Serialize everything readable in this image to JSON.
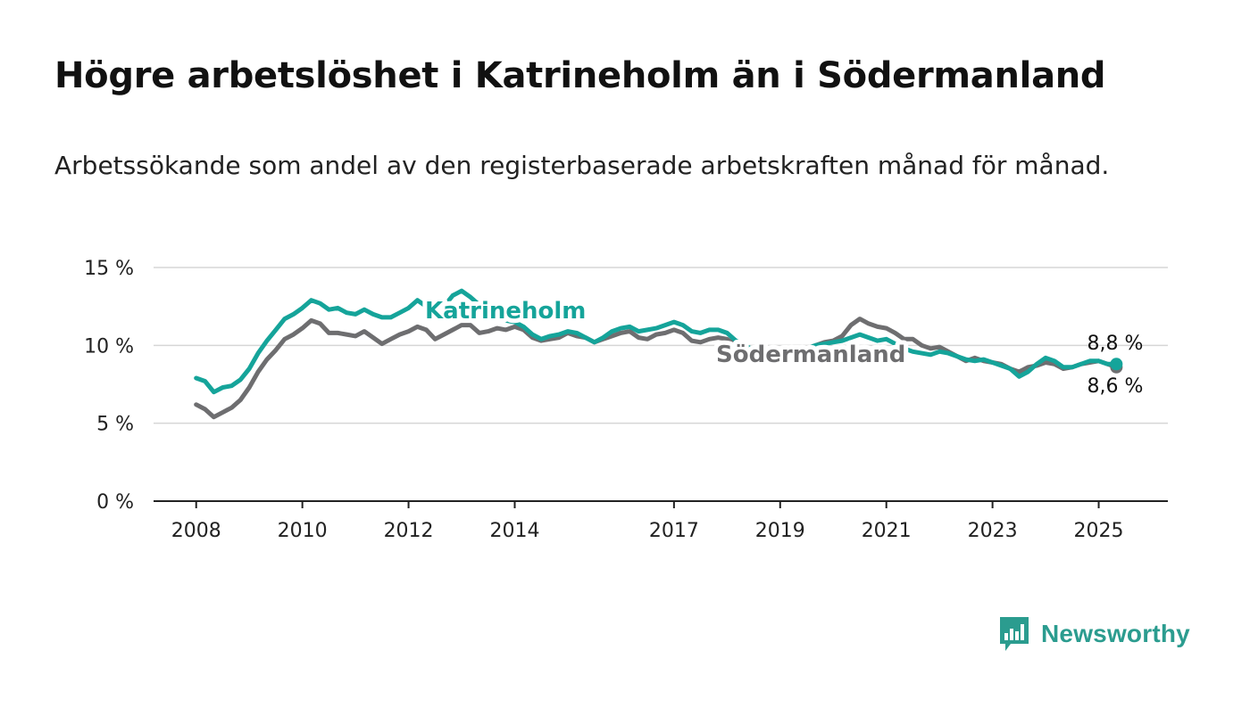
{
  "title": "Högre arbetslöshet i Katrineholm än i Södermanland",
  "subtitle": "Arbetssökande som andel av den registerbaserade arbetskraften månad för månad.",
  "brand": {
    "name": "Newsworthy",
    "icon": "bar-chart-speech-bubble-icon"
  },
  "chart_data": {
    "type": "line",
    "ylim": [
      0,
      15
    ],
    "yticks": [
      0,
      5,
      10,
      15
    ],
    "ytick_labels": [
      "0 %",
      "5 %",
      "10 %",
      "15 %"
    ],
    "xlim": [
      "2007-07",
      "2026-01"
    ],
    "xticks": [
      "2008",
      "2010",
      "2012",
      "2014",
      "2017",
      "2019",
      "2021",
      "2023",
      "2025"
    ],
    "grid": true,
    "series": [
      {
        "name": "Katrineholm",
        "color": "#15a49a",
        "end_label": "8,8 %",
        "points": [
          [
            "2008-01",
            7.9
          ],
          [
            "2008-03",
            7.7
          ],
          [
            "2008-05",
            7.0
          ],
          [
            "2008-07",
            7.3
          ],
          [
            "2008-09",
            7.4
          ],
          [
            "2008-11",
            7.8
          ],
          [
            "2009-01",
            8.5
          ],
          [
            "2009-03",
            9.5
          ],
          [
            "2009-05",
            10.3
          ],
          [
            "2009-07",
            11.0
          ],
          [
            "2009-09",
            11.7
          ],
          [
            "2009-11",
            12.0
          ],
          [
            "2010-01",
            12.4
          ],
          [
            "2010-03",
            12.9
          ],
          [
            "2010-05",
            12.7
          ],
          [
            "2010-07",
            12.3
          ],
          [
            "2010-09",
            12.4
          ],
          [
            "2010-11",
            12.1
          ],
          [
            "2011-01",
            12.0
          ],
          [
            "2011-03",
            12.3
          ],
          [
            "2011-05",
            12.0
          ],
          [
            "2011-07",
            11.8
          ],
          [
            "2011-09",
            11.8
          ],
          [
            "2011-11",
            12.1
          ],
          [
            "2012-01",
            12.4
          ],
          [
            "2012-03",
            12.9
          ],
          [
            "2012-05",
            12.5
          ],
          [
            "2012-07",
            12.0
          ],
          [
            "2012-09",
            12.5
          ],
          [
            "2012-11",
            13.2
          ],
          [
            "2013-01",
            13.5
          ],
          [
            "2013-03",
            13.1
          ],
          [
            "2013-05",
            12.6
          ],
          [
            "2013-07",
            12.0
          ],
          [
            "2013-09",
            11.8
          ],
          [
            "2013-11",
            11.6
          ],
          [
            "2014-01",
            11.5
          ],
          [
            "2014-03",
            11.2
          ],
          [
            "2014-05",
            10.7
          ],
          [
            "2014-07",
            10.4
          ],
          [
            "2014-09",
            10.6
          ],
          [
            "2014-11",
            10.7
          ],
          [
            "2015-01",
            10.9
          ],
          [
            "2015-03",
            10.8
          ],
          [
            "2015-05",
            10.5
          ],
          [
            "2015-07",
            10.2
          ],
          [
            "2015-09",
            10.5
          ],
          [
            "2015-11",
            10.9
          ],
          [
            "2016-01",
            11.1
          ],
          [
            "2016-03",
            11.2
          ],
          [
            "2016-05",
            10.9
          ],
          [
            "2016-07",
            11.0
          ],
          [
            "2016-09",
            11.1
          ],
          [
            "2016-11",
            11.3
          ],
          [
            "2017-01",
            11.5
          ],
          [
            "2017-03",
            11.3
          ],
          [
            "2017-05",
            10.9
          ],
          [
            "2017-07",
            10.8
          ],
          [
            "2017-09",
            11.0
          ],
          [
            "2017-11",
            11.0
          ],
          [
            "2018-01",
            10.8
          ],
          [
            "2018-03",
            10.3
          ],
          [
            "2018-05",
            10.0
          ],
          [
            "2018-07",
            9.7
          ],
          [
            "2018-09",
            9.5
          ],
          [
            "2018-11",
            9.4
          ],
          [
            "2019-01",
            9.5
          ],
          [
            "2019-03",
            9.6
          ],
          [
            "2019-05",
            9.7
          ],
          [
            "2019-07",
            9.8
          ],
          [
            "2019-09",
            10.0
          ],
          [
            "2019-11",
            10.1
          ],
          [
            "2020-01",
            10.2
          ],
          [
            "2020-03",
            10.3
          ],
          [
            "2020-05",
            10.5
          ],
          [
            "2020-07",
            10.7
          ],
          [
            "2020-09",
            10.5
          ],
          [
            "2020-11",
            10.3
          ],
          [
            "2021-01",
            10.4
          ],
          [
            "2021-03",
            10.1
          ],
          [
            "2021-05",
            9.8
          ],
          [
            "2021-07",
            9.6
          ],
          [
            "2021-09",
            9.5
          ],
          [
            "2021-11",
            9.4
          ],
          [
            "2022-01",
            9.6
          ],
          [
            "2022-03",
            9.5
          ],
          [
            "2022-05",
            9.3
          ],
          [
            "2022-07",
            9.1
          ],
          [
            "2022-09",
            9.0
          ],
          [
            "2022-11",
            9.1
          ],
          [
            "2023-01",
            8.9
          ],
          [
            "2023-03",
            8.7
          ],
          [
            "2023-05",
            8.5
          ],
          [
            "2023-07",
            8.0
          ],
          [
            "2023-09",
            8.3
          ],
          [
            "2023-11",
            8.8
          ],
          [
            "2024-01",
            9.2
          ],
          [
            "2024-03",
            9.0
          ],
          [
            "2024-05",
            8.6
          ],
          [
            "2024-07",
            8.6
          ],
          [
            "2024-09",
            8.8
          ],
          [
            "2024-11",
            9.0
          ],
          [
            "2025-01",
            9.0
          ],
          [
            "2025-03",
            8.8
          ],
          [
            "2025-05",
            8.8
          ]
        ]
      },
      {
        "name": "Södermanland",
        "color": "#6e6e70",
        "end_label": "8,6 %",
        "points": [
          [
            "2008-01",
            6.2
          ],
          [
            "2008-03",
            5.9
          ],
          [
            "2008-05",
            5.4
          ],
          [
            "2008-07",
            5.7
          ],
          [
            "2008-09",
            6.0
          ],
          [
            "2008-11",
            6.5
          ],
          [
            "2009-01",
            7.3
          ],
          [
            "2009-03",
            8.3
          ],
          [
            "2009-05",
            9.1
          ],
          [
            "2009-07",
            9.7
          ],
          [
            "2009-09",
            10.4
          ],
          [
            "2009-11",
            10.7
          ],
          [
            "2010-01",
            11.1
          ],
          [
            "2010-03",
            11.6
          ],
          [
            "2010-05",
            11.4
          ],
          [
            "2010-07",
            10.8
          ],
          [
            "2010-09",
            10.8
          ],
          [
            "2010-11",
            10.7
          ],
          [
            "2011-01",
            10.6
          ],
          [
            "2011-03",
            10.9
          ],
          [
            "2011-05",
            10.5
          ],
          [
            "2011-07",
            10.1
          ],
          [
            "2011-09",
            10.4
          ],
          [
            "2011-11",
            10.7
          ],
          [
            "2012-01",
            10.9
          ],
          [
            "2012-03",
            11.2
          ],
          [
            "2012-05",
            11.0
          ],
          [
            "2012-07",
            10.4
          ],
          [
            "2012-09",
            10.7
          ],
          [
            "2012-11",
            11.0
          ],
          [
            "2013-01",
            11.3
          ],
          [
            "2013-03",
            11.3
          ],
          [
            "2013-05",
            10.8
          ],
          [
            "2013-07",
            10.9
          ],
          [
            "2013-09",
            11.1
          ],
          [
            "2013-11",
            11.0
          ],
          [
            "2014-01",
            11.2
          ],
          [
            "2014-03",
            11.0
          ],
          [
            "2014-05",
            10.5
          ],
          [
            "2014-07",
            10.3
          ],
          [
            "2014-09",
            10.4
          ],
          [
            "2014-11",
            10.5
          ],
          [
            "2015-01",
            10.8
          ],
          [
            "2015-03",
            10.6
          ],
          [
            "2015-05",
            10.5
          ],
          [
            "2015-07",
            10.2
          ],
          [
            "2015-09",
            10.4
          ],
          [
            "2015-11",
            10.6
          ],
          [
            "2016-01",
            10.8
          ],
          [
            "2016-03",
            10.9
          ],
          [
            "2016-05",
            10.5
          ],
          [
            "2016-07",
            10.4
          ],
          [
            "2016-09",
            10.7
          ],
          [
            "2016-11",
            10.8
          ],
          [
            "2017-01",
            11.0
          ],
          [
            "2017-03",
            10.8
          ],
          [
            "2017-05",
            10.3
          ],
          [
            "2017-07",
            10.2
          ],
          [
            "2017-09",
            10.4
          ],
          [
            "2017-11",
            10.5
          ],
          [
            "2018-01",
            10.4
          ],
          [
            "2018-03",
            10.0
          ],
          [
            "2018-05",
            9.8
          ],
          [
            "2018-07",
            9.6
          ],
          [
            "2018-09",
            9.5
          ],
          [
            "2018-11",
            9.4
          ],
          [
            "2019-01",
            9.5
          ],
          [
            "2019-03",
            9.6
          ],
          [
            "2019-05",
            9.7
          ],
          [
            "2019-07",
            9.8
          ],
          [
            "2019-09",
            10.0
          ],
          [
            "2019-11",
            10.2
          ],
          [
            "2020-01",
            10.3
          ],
          [
            "2020-03",
            10.6
          ],
          [
            "2020-05",
            11.3
          ],
          [
            "2020-07",
            11.7
          ],
          [
            "2020-09",
            11.4
          ],
          [
            "2020-11",
            11.2
          ],
          [
            "2021-01",
            11.1
          ],
          [
            "2021-03",
            10.8
          ],
          [
            "2021-05",
            10.4
          ],
          [
            "2021-07",
            10.4
          ],
          [
            "2021-09",
            10.0
          ],
          [
            "2021-11",
            9.8
          ],
          [
            "2022-01",
            9.9
          ],
          [
            "2022-03",
            9.6
          ],
          [
            "2022-05",
            9.3
          ],
          [
            "2022-07",
            9.0
          ],
          [
            "2022-09",
            9.2
          ],
          [
            "2022-11",
            9.0
          ],
          [
            "2023-01",
            8.9
          ],
          [
            "2023-03",
            8.8
          ],
          [
            "2023-05",
            8.5
          ],
          [
            "2023-07",
            8.3
          ],
          [
            "2023-09",
            8.6
          ],
          [
            "2023-11",
            8.7
          ],
          [
            "2024-01",
            8.9
          ],
          [
            "2024-03",
            8.8
          ],
          [
            "2024-05",
            8.5
          ],
          [
            "2024-07",
            8.6
          ],
          [
            "2024-09",
            8.8
          ],
          [
            "2024-11",
            8.9
          ],
          [
            "2025-01",
            9.0
          ],
          [
            "2025-03",
            8.8
          ],
          [
            "2025-05",
            8.6
          ]
        ]
      }
    ]
  }
}
